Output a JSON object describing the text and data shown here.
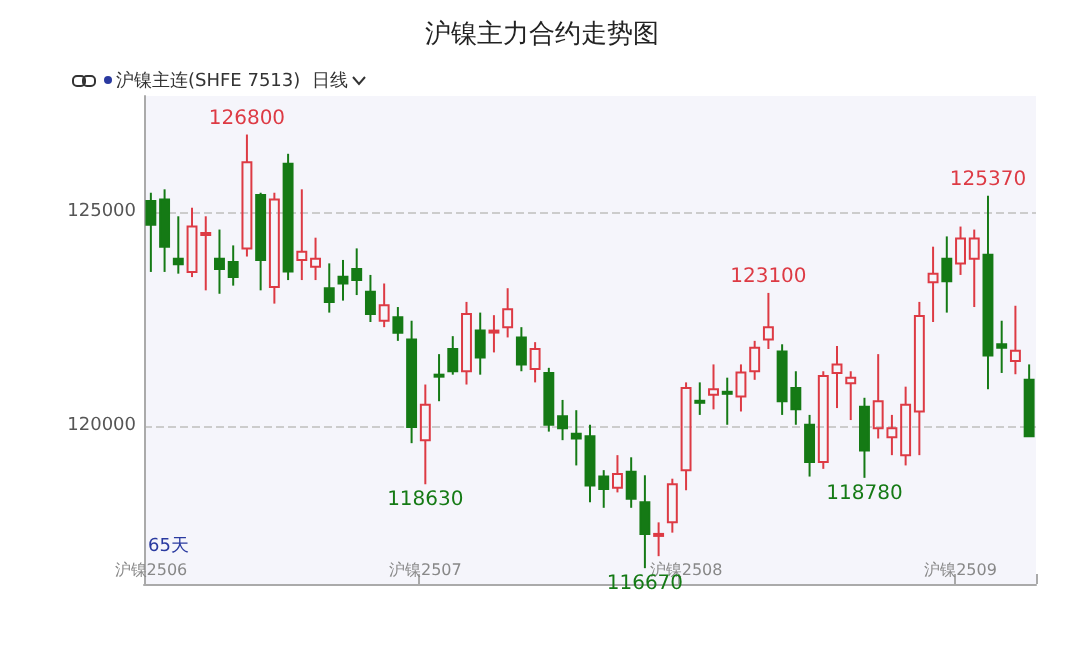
{
  "chart_data": {
    "type": "candlestick",
    "title": "沪镍主力合约走势图",
    "subtitle": "沪镍主连(SHFE 7513)  日线",
    "categories": [
      "沪镍2506",
      null,
      null,
      null,
      null,
      null,
      null,
      null,
      null,
      null,
      null,
      null,
      null,
      null,
      null,
      null,
      null,
      null,
      null,
      null,
      "沪镍2507",
      null,
      null,
      null,
      null,
      null,
      null,
      null,
      null,
      null,
      null,
      null,
      null,
      null,
      null,
      null,
      null,
      null,
      null,
      "沪镍2508",
      null,
      null,
      null,
      null,
      null,
      null,
      null,
      null,
      null,
      null,
      null,
      null,
      null,
      null,
      null,
      null,
      null,
      null,
      null,
      "沪镍2509",
      null,
      null,
      null,
      null,
      null
    ],
    "ohlc": [
      [
        125250,
        125440,
        123590,
        124690
      ],
      [
        125280,
        125520,
        123590,
        124180
      ],
      [
        123900,
        124890,
        123550,
        123770
      ],
      [
        123590,
        125090,
        123470,
        124650
      ],
      [
        124460,
        124890,
        123160,
        124500
      ],
      [
        123900,
        124580,
        123080,
        123660
      ],
      [
        123820,
        124210,
        123270,
        123470
      ],
      [
        124140,
        126800,
        123950,
        126150
      ],
      [
        125390,
        125440,
        123160,
        123870
      ],
      [
        123240,
        125440,
        122850,
        125280
      ],
      [
        126120,
        126350,
        123400,
        123600
      ],
      [
        123870,
        125520,
        123400,
        124060
      ],
      [
        123710,
        124390,
        123400,
        123900
      ],
      [
        123210,
        123790,
        122640,
        122890
      ],
      [
        123480,
        123870,
        122920,
        123320
      ],
      [
        123660,
        124140,
        123050,
        123400
      ],
      [
        123130,
        123520,
        122420,
        122610
      ],
      [
        122450,
        123320,
        122300,
        122810
      ],
      [
        122530,
        122770,
        121980,
        122170
      ],
      [
        122010,
        122450,
        119590,
        119970
      ],
      [
        119660,
        120960,
        118630,
        120490
      ],
      [
        121190,
        121670,
        120570,
        121160
      ],
      [
        121790,
        122090,
        121190,
        121270
      ],
      [
        121270,
        122890,
        120960,
        122610
      ],
      [
        122220,
        122640,
        121190,
        121590
      ],
      [
        122200,
        122580,
        121710,
        122220
      ],
      [
        122300,
        123210,
        122060,
        122720
      ],
      [
        122060,
        122300,
        121270,
        121430
      ],
      [
        121320,
        121950,
        121010,
        121790
      ],
      [
        121230,
        121350,
        119860,
        120020
      ],
      [
        120220,
        120600,
        119660,
        119940
      ],
      [
        119810,
        120360,
        119070,
        119700
      ],
      [
        119750,
        120020,
        118210,
        118600
      ],
      [
        118810,
        118960,
        118080,
        118520
      ],
      [
        118550,
        119310,
        118440,
        118870
      ],
      [
        118920,
        119260,
        118080,
        118290
      ],
      [
        118210,
        118840,
        116670,
        117470
      ],
      [
        117450,
        117740,
        116950,
        117470
      ],
      [
        117740,
        118760,
        117500,
        118630
      ],
      [
        118960,
        121010,
        118490,
        120880
      ],
      [
        120580,
        121010,
        120250,
        120550
      ],
      [
        120720,
        121430,
        120380,
        120850
      ],
      [
        120790,
        121120,
        120020,
        120770
      ],
      [
        120680,
        121430,
        120330,
        121240
      ],
      [
        121270,
        121980,
        121070,
        121820
      ],
      [
        122010,
        123100,
        121790,
        122300
      ],
      [
        121730,
        121900,
        120250,
        120570
      ],
      [
        120880,
        121270,
        120020,
        120380
      ],
      [
        120020,
        120250,
        118810,
        119150
      ],
      [
        119150,
        121270,
        118990,
        121160
      ],
      [
        121230,
        121860,
        120410,
        121430
      ],
      [
        120990,
        121270,
        120130,
        121120
      ],
      [
        120440,
        120650,
        118780,
        119420
      ],
      [
        119940,
        121670,
        119700,
        120570
      ],
      [
        119730,
        120250,
        119310,
        119940
      ],
      [
        119310,
        120910,
        119070,
        120490
      ],
      [
        120330,
        122890,
        119310,
        122560
      ],
      [
        123350,
        124180,
        122420,
        123550
      ],
      [
        123900,
        124420,
        122640,
        123370
      ],
      [
        123790,
        124650,
        123520,
        124370
      ],
      [
        123900,
        124580,
        122770,
        124370
      ],
      [
        123990,
        125370,
        120850,
        121640
      ],
      [
        121900,
        122450,
        121230,
        121820
      ],
      [
        121510,
        122800,
        121200,
        121750
      ],
      [
        121070,
        121430,
        119750,
        119750
      ]
    ],
    "colors": [
      "#157a15",
      "#157a15",
      "#157a15",
      "#dd3a44",
      "#dd3a44",
      "#157a15",
      "#157a15",
      "#dd3a44",
      "#157a15",
      "#dd3a44",
      "#157a15",
      "#dd3a44",
      "#dd3a44",
      "#157a15",
      "#157a15",
      "#157a15",
      "#157a15",
      "#dd3a44",
      "#157a15",
      "#157a15",
      "#dd3a44",
      "#157a15",
      "#157a15",
      "#dd3a44",
      "#157a15",
      "#dd3a44",
      "#dd3a44",
      "#157a15",
      "#dd3a44",
      "#157a15",
      "#157a15",
      "#157a15",
      "#157a15",
      "#157a15",
      "#dd3a44",
      "#157a15",
      "#157a15",
      "#dd3a44",
      "#dd3a44",
      "#dd3a44",
      "#157a15",
      "#dd3a44",
      "#157a15",
      "#dd3a44",
      "#dd3a44",
      "#dd3a44",
      "#157a15",
      "#157a15",
      "#157a15",
      "#dd3a44",
      "#dd3a44",
      "#dd3a44",
      "#157a15",
      "#dd3a44",
      "#dd3a44",
      "#dd3a44",
      "#dd3a44",
      "#dd3a44",
      "#157a15",
      "#dd3a44",
      "#dd3a44",
      "#157a15",
      "#157a15",
      "#dd3a44",
      "#157a15"
    ],
    "ylim": [
      116300,
      127700
    ],
    "yticks": [
      120000,
      125000
    ],
    "grid": "y",
    "annotations": [
      "126800",
      "118630",
      "116670",
      "123100",
      "118780",
      "125370",
      "65天"
    ]
  }
}
